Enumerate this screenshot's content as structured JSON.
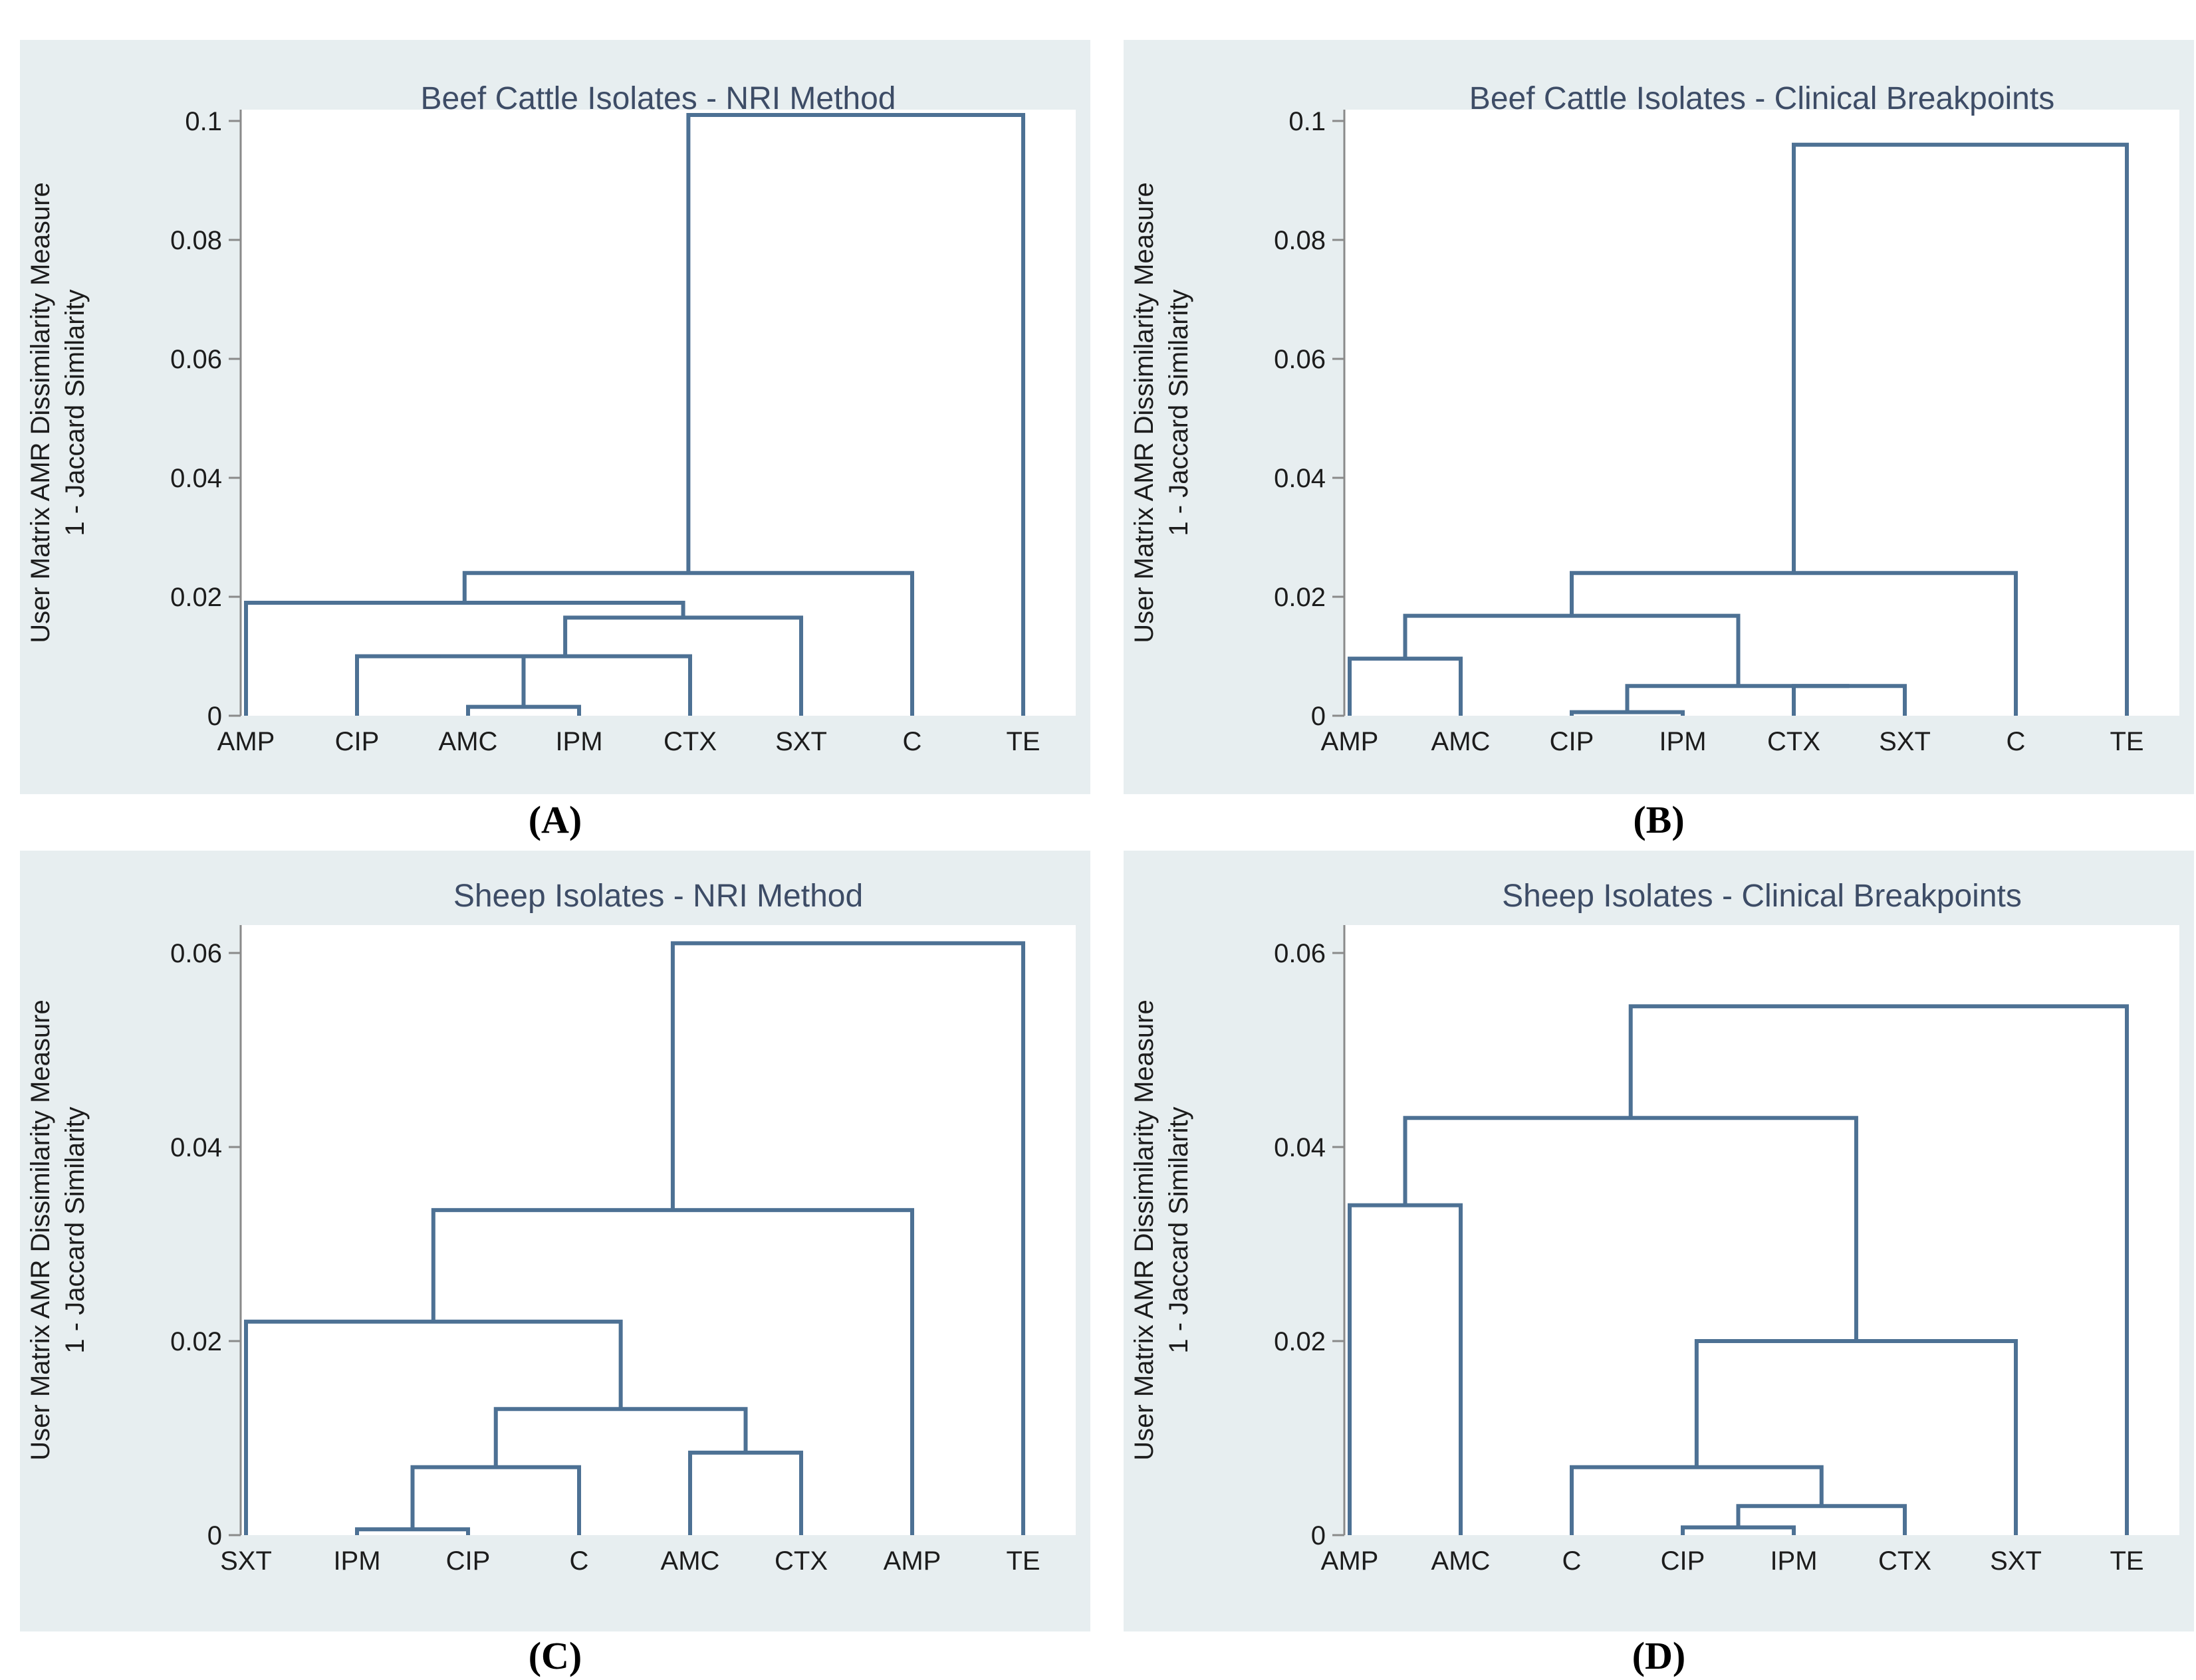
{
  "colors": {
    "panel_bg": "#e7eef0",
    "plot_bg": "#ffffff",
    "dendrogram_line": "#4d7194",
    "title_text": "#3d4c66",
    "axis_text": "#1c1c1c",
    "axis_line": "#8a8a8a",
    "caption_text": "#000000"
  },
  "chart_data": [
    {
      "type": "dendrogram",
      "caption": "(A)",
      "title": "Beef Cattle Isolates - NRI Method",
      "ylabel_line1": "User Matrix AMR Dissimilarity Measure",
      "ylabel_line2": "1 - Jaccard Similarity",
      "ylim": [
        0,
        0.105
      ],
      "yticks": [
        0,
        0.02,
        0.04,
        0.06,
        0.08,
        0.1
      ],
      "ytick_labels": [
        "0",
        "0.02",
        "0.04",
        "0.06",
        "0.08",
        "0.1"
      ],
      "leaves": [
        "AMP",
        "CIP",
        "AMC",
        "IPM",
        "CTX",
        "SXT",
        "C",
        "TE"
      ],
      "merges": [
        {
          "a": "AMC",
          "b": "IPM",
          "height": 0.0015
        },
        {
          "a": "CIP",
          "b": 0,
          "height": 0.01
        },
        {
          "a": 1,
          "b": "CTX",
          "height": 0.01
        },
        {
          "a": 2,
          "b": "SXT",
          "height": 0.0165
        },
        {
          "a": "AMP",
          "b": 3,
          "height": 0.019
        },
        {
          "a": 4,
          "b": "C",
          "height": 0.024
        },
        {
          "a": 5,
          "b": "TE",
          "height": 0.101
        }
      ]
    },
    {
      "type": "dendrogram",
      "caption": "(B)",
      "title": "Beef Cattle Isolates - Clinical Breakpoints",
      "ylabel_line1": "User Matrix AMR Dissimilarity Measure",
      "ylabel_line2": "1 - Jaccard Similarity",
      "ylim": [
        0,
        0.105
      ],
      "yticks": [
        0,
        0.02,
        0.04,
        0.06,
        0.08,
        0.1
      ],
      "ytick_labels": [
        "0",
        "0.02",
        "0.04",
        "0.06",
        "0.08",
        "0.1"
      ],
      "leaves": [
        "AMP",
        "AMC",
        "CIP",
        "IPM",
        "CTX",
        "SXT",
        "C",
        "TE"
      ],
      "merges": [
        {
          "a": "AMP",
          "b": "AMC",
          "height": 0.0096
        },
        {
          "a": "CIP",
          "b": "IPM",
          "height": 0.0006
        },
        {
          "a": "CTX",
          "b": "SXT",
          "height": 0.005
        },
        {
          "a": 1,
          "b": 2,
          "height": 0.005
        },
        {
          "a": 0,
          "b": 3,
          "height": 0.0168
        },
        {
          "a": 4,
          "b": "C",
          "height": 0.024
        },
        {
          "a": 5,
          "b": "TE",
          "height": 0.096
        }
      ]
    },
    {
      "type": "dendrogram",
      "caption": "(C)",
      "title": "Sheep Isolates - NRI Method",
      "ylabel_line1": "User Matrix AMR Dissimilarity Measure",
      "ylabel_line2": "1 - Jaccard Similarity",
      "ylim": [
        0,
        0.063
      ],
      "yticks": [
        0,
        0.02,
        0.04,
        0.06
      ],
      "ytick_labels": [
        "0",
        "0.02",
        "0.04",
        "0.06"
      ],
      "leaves": [
        "SXT",
        "IPM",
        "CIP",
        "C",
        "AMC",
        "CTX",
        "AMP",
        "TE"
      ],
      "merges": [
        {
          "a": "IPM",
          "b": "CIP",
          "height": 0.0006
        },
        {
          "a": 0,
          "b": "C",
          "height": 0.007
        },
        {
          "a": "AMC",
          "b": "CTX",
          "height": 0.0085
        },
        {
          "a": 1,
          "b": 2,
          "height": 0.013
        },
        {
          "a": "SXT",
          "b": 3,
          "height": 0.022
        },
        {
          "a": 4,
          "b": "AMP",
          "height": 0.0335
        },
        {
          "a": 5,
          "b": "TE",
          "height": 0.061
        }
      ]
    },
    {
      "type": "dendrogram",
      "caption": "(D)",
      "title": "Sheep Isolates - Clinical Breakpoints",
      "ylabel_line1": "User Matrix AMR Dissimilarity Measure",
      "ylabel_line2": "1 - Jaccard Similarity",
      "ylim": [
        0,
        0.063
      ],
      "yticks": [
        0,
        0.02,
        0.04,
        0.06
      ],
      "ytick_labels": [
        "0",
        "0.02",
        "0.04",
        "0.06"
      ],
      "leaves": [
        "AMP",
        "AMC",
        "C",
        "CIP",
        "IPM",
        "CTX",
        "SXT",
        "TE"
      ],
      "merges": [
        {
          "a": "CIP",
          "b": "IPM",
          "height": 0.0008
        },
        {
          "a": 0,
          "b": "CTX",
          "height": 0.003
        },
        {
          "a": "C",
          "b": 1,
          "height": 0.007
        },
        {
          "a": "AMP",
          "b": "AMC",
          "height": 0.034
        },
        {
          "a": 2,
          "b": "SXT",
          "height": 0.02
        },
        {
          "a": 3,
          "b": 4,
          "height": 0.043
        },
        {
          "a": 5,
          "b": "TE",
          "height": 0.0545
        }
      ]
    }
  ]
}
